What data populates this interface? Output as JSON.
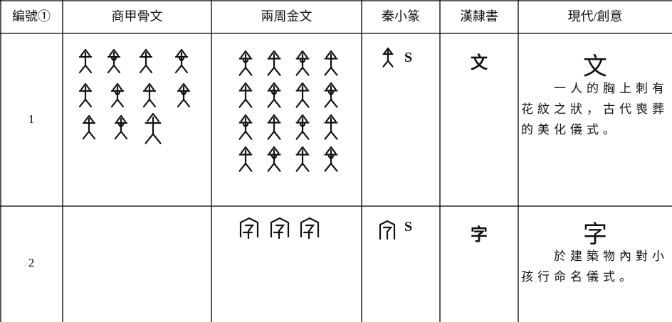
{
  "table": {
    "header": [
      "編號①",
      "商甲骨文",
      "兩周金文",
      "秦小篆",
      "漢隸書",
      "現代/創意"
    ],
    "rows": [
      {
        "number": "1",
        "seal": "S",
        "clerical": "文",
        "modern": "文",
        "description": "一人的胸上刺有花紋之狀，古代喪葬的美化儀式。"
      },
      {
        "number": "2",
        "seal": "S",
        "clerical": "字",
        "modern": "字",
        "description": "於建築物內對小孩行命名儀式。"
      }
    ]
  }
}
